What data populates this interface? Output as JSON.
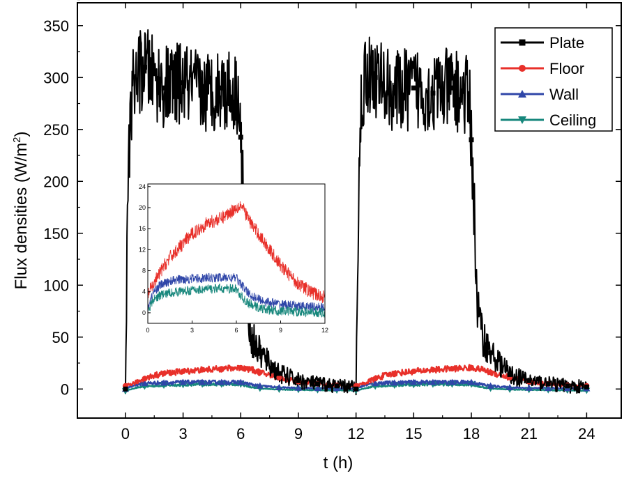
{
  "chart_data": {
    "type": "line",
    "xlabel": "t (h)",
    "ylabel": "Flux densities (W/m",
    "ylabel_sup": "2",
    "ylabel_close": ")",
    "xlim": [
      -2.5,
      25.8
    ],
    "ylim": [
      -28,
      372
    ],
    "xticks": [
      "0",
      "3",
      "6",
      "9",
      "12",
      "15",
      "18",
      "21",
      "24"
    ],
    "yticks": [
      "0",
      "50",
      "100",
      "150",
      "200",
      "250",
      "300",
      "350"
    ],
    "legend_position": "top-right",
    "series": [
      {
        "name": "Plate",
        "color": "#000000",
        "marker": "square",
        "points": [
          [
            0,
            0
          ],
          [
            0.1,
            150
          ],
          [
            0.25,
            270
          ],
          [
            0.5,
            300
          ],
          [
            1,
            310
          ],
          [
            2,
            290
          ],
          [
            3,
            295
          ],
          [
            4,
            285
          ],
          [
            5,
            290
          ],
          [
            5.9,
            285
          ],
          [
            6.1,
            200
          ],
          [
            6.3,
            80
          ],
          [
            6.6,
            48
          ],
          [
            7,
            35
          ],
          [
            7.5,
            24
          ],
          [
            8,
            15
          ],
          [
            9,
            8
          ],
          [
            10,
            5
          ],
          [
            11,
            3
          ],
          [
            11.9,
            2
          ],
          [
            12,
            0
          ],
          [
            12.1,
            150
          ],
          [
            12.25,
            270
          ],
          [
            12.5,
            305
          ],
          [
            13,
            300
          ],
          [
            14,
            285
          ],
          [
            15,
            290
          ],
          [
            16,
            285
          ],
          [
            17,
            290
          ],
          [
            17.9,
            280
          ],
          [
            18.1,
            200
          ],
          [
            18.3,
            80
          ],
          [
            18.6,
            50
          ],
          [
            19,
            35
          ],
          [
            19.5,
            24
          ],
          [
            20,
            14
          ],
          [
            21,
            8
          ],
          [
            22,
            5
          ],
          [
            23,
            3
          ],
          [
            24,
            2
          ]
        ],
        "noise": 40
      },
      {
        "name": "Floor",
        "color": "#e8302a",
        "marker": "circle",
        "points": [
          [
            0,
            3
          ],
          [
            0.5,
            6
          ],
          [
            1,
            10
          ],
          [
            1.5,
            13
          ],
          [
            2,
            15
          ],
          [
            3,
            17
          ],
          [
            4,
            18.5
          ],
          [
            5,
            19.5
          ],
          [
            6,
            20.5
          ],
          [
            6.5,
            19
          ],
          [
            7,
            16
          ],
          [
            8,
            11
          ],
          [
            9,
            7
          ],
          [
            10,
            5
          ],
          [
            11,
            3.5
          ],
          [
            12,
            3
          ],
          [
            12.5,
            6
          ],
          [
            13,
            10
          ],
          [
            13.5,
            13
          ],
          [
            14,
            15
          ],
          [
            15,
            17
          ],
          [
            16,
            18.5
          ],
          [
            17,
            19.5
          ],
          [
            18,
            20.5
          ],
          [
            18.5,
            19
          ],
          [
            19,
            16
          ],
          [
            20,
            11
          ],
          [
            21,
            7
          ],
          [
            22,
            5
          ],
          [
            23,
            3.5
          ],
          [
            24,
            3
          ]
        ],
        "noise": 3
      },
      {
        "name": "Wall",
        "color": "#2f46a8",
        "marker": "triangle-up",
        "points": [
          [
            0,
            0
          ],
          [
            0.5,
            4
          ],
          [
            1,
            5.5
          ],
          [
            2,
            6
          ],
          [
            3,
            6.5
          ],
          [
            4,
            6.5
          ],
          [
            5,
            6.5
          ],
          [
            6,
            6.5
          ],
          [
            6.5,
            4.5
          ],
          [
            7,
            3
          ],
          [
            8,
            1.5
          ],
          [
            9,
            1
          ],
          [
            10,
            0.8
          ],
          [
            12,
            0.5
          ],
          [
            12.5,
            4
          ],
          [
            13,
            5.5
          ],
          [
            14,
            6
          ],
          [
            15,
            6.5
          ],
          [
            16,
            6.5
          ],
          [
            17,
            6.5
          ],
          [
            18,
            6.5
          ],
          [
            18.5,
            4.5
          ],
          [
            19,
            3
          ],
          [
            20,
            1.5
          ],
          [
            21,
            1
          ],
          [
            22,
            0.8
          ],
          [
            24,
            0.5
          ]
        ],
        "noise": 2
      },
      {
        "name": "Ceiling",
        "color": "#17877c",
        "marker": "triangle-down",
        "points": [
          [
            0,
            -2
          ],
          [
            0.5,
            1
          ],
          [
            1,
            2.5
          ],
          [
            2,
            3.5
          ],
          [
            3,
            4
          ],
          [
            4,
            4.5
          ],
          [
            5,
            4.5
          ],
          [
            6,
            4.5
          ],
          [
            6.5,
            2
          ],
          [
            7,
            0.5
          ],
          [
            8,
            -0.5
          ],
          [
            10,
            -1
          ],
          [
            12,
            -1.5
          ],
          [
            12.5,
            1
          ],
          [
            13,
            2.5
          ],
          [
            14,
            3.5
          ],
          [
            15,
            4
          ],
          [
            16,
            4.5
          ],
          [
            17,
            4.5
          ],
          [
            18,
            4.5
          ],
          [
            18.5,
            2
          ],
          [
            19,
            0.5
          ],
          [
            20,
            -0.5
          ],
          [
            22,
            -1
          ],
          [
            24,
            -1.5
          ]
        ],
        "noise": 1.5
      }
    ],
    "inset": {
      "xlim": [
        0,
        12
      ],
      "ylim": [
        -2,
        24.5
      ],
      "xticks": [
        "0",
        "3",
        "6",
        "9",
        "12"
      ],
      "yticks": [
        "0",
        "4",
        "8",
        "12",
        "16",
        "20",
        "24"
      ],
      "series": [
        {
          "name": "Floor",
          "color": "#e8302a",
          "points": [
            [
              0,
              3.5
            ],
            [
              0.3,
              5
            ],
            [
              0.7,
              7
            ],
            [
              1,
              8.5
            ],
            [
              1.5,
              10.5
            ],
            [
              2,
              12
            ],
            [
              2.5,
              13.5
            ],
            [
              3,
              15
            ],
            [
              3.5,
              16
            ],
            [
              4,
              17
            ],
            [
              4.5,
              17.5
            ],
            [
              5,
              18
            ],
            [
              5.5,
              19
            ],
            [
              6,
              20
            ],
            [
              6.3,
              20.5
            ],
            [
              6.6,
              19
            ],
            [
              7,
              17
            ],
            [
              7.5,
              15
            ],
            [
              8,
              13
            ],
            [
              8.5,
              11
            ],
            [
              9,
              9
            ],
            [
              9.5,
              7.5
            ],
            [
              10,
              6
            ],
            [
              10.5,
              5
            ],
            [
              11,
              4
            ],
            [
              11.5,
              3.4
            ],
            [
              12,
              3
            ]
          ],
          "noise": 1.3
        },
        {
          "name": "Wall",
          "color": "#2f46a8",
          "points": [
            [
              0,
              1
            ],
            [
              0.4,
              4
            ],
            [
              0.8,
              5.2
            ],
            [
              1.5,
              6
            ],
            [
              2,
              6.3
            ],
            [
              3,
              6.5
            ],
            [
              4,
              6.6
            ],
            [
              5,
              6.7
            ],
            [
              6,
              6.6
            ],
            [
              6.3,
              5.5
            ],
            [
              6.7,
              4
            ],
            [
              7,
              3.3
            ],
            [
              7.5,
              2.6
            ],
            [
              8,
              2.1
            ],
            [
              9,
              1.6
            ],
            [
              10,
              1.3
            ],
            [
              11,
              1.1
            ],
            [
              12,
              1
            ]
          ],
          "noise": 0.9
        },
        {
          "name": "Ceiling",
          "color": "#17877c",
          "points": [
            [
              0,
              0.5
            ],
            [
              0.4,
              2.5
            ],
            [
              0.8,
              3.3
            ],
            [
              1.5,
              3.8
            ],
            [
              2,
              4
            ],
            [
              3,
              4.3
            ],
            [
              4,
              4.5
            ],
            [
              5,
              4.6
            ],
            [
              6,
              4.5
            ],
            [
              6.3,
              3.2
            ],
            [
              6.7,
              2
            ],
            [
              7,
              1.5
            ],
            [
              7.5,
              1
            ],
            [
              8,
              0.6
            ],
            [
              9,
              0.3
            ],
            [
              10,
              0.2
            ],
            [
              12,
              0
            ]
          ],
          "noise": 0.9
        }
      ]
    }
  }
}
